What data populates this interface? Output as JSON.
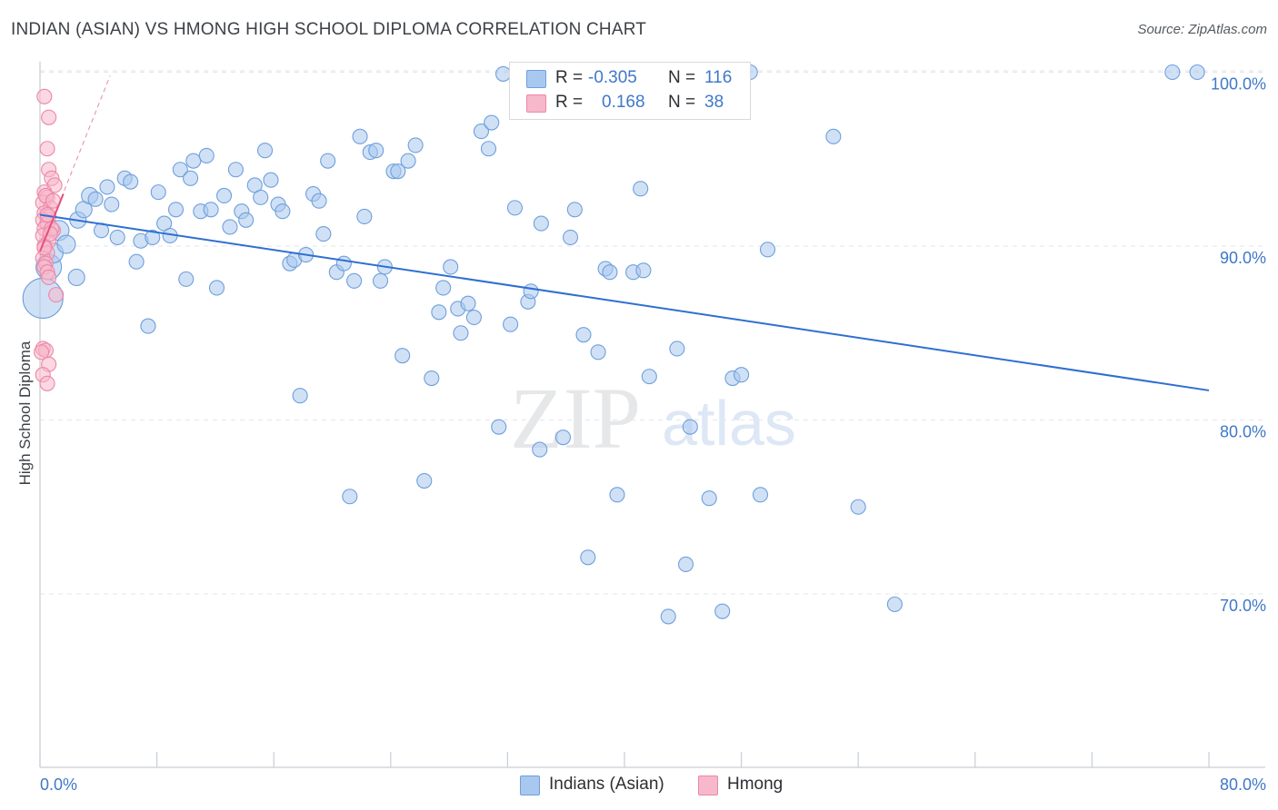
{
  "title": "INDIAN (ASIAN) VS HMONG HIGH SCHOOL DIPLOMA CORRELATION CHART",
  "source": "Source: ZipAtlas.com",
  "watermark": {
    "zip": "ZIP",
    "atlas": "atlas"
  },
  "legend": {
    "rows": [
      {
        "r_label": "R =",
        "r_value": "-0.305",
        "n_label": "N =",
        "n_value": "116"
      },
      {
        "r_label": "R =",
        "r_value": "0.168",
        "n_label": "N =",
        "n_value": "38"
      }
    ]
  },
  "bottom_legend": [
    {
      "label": "Indians (Asian)"
    },
    {
      "label": "Hmong"
    }
  ],
  "colors": {
    "blue_fill": "#a9c8ef",
    "blue_stroke": "#6f9fdc",
    "blue_line": "#2f6fd1",
    "pink_fill": "#f7b8cb",
    "pink_stroke": "#ec87a7",
    "pink_line": "#e6507e",
    "grid": "#e3e6ea",
    "axis_text": "#3f78c8"
  },
  "chart_data": {
    "type": "scatter",
    "title": "INDIAN (ASIAN) VS HMONG HIGH SCHOOL DIPLOMA CORRELATION CHART",
    "xlabel": "",
    "ylabel": "High School Diploma",
    "xlim": [
      0,
      80
    ],
    "ylim": [
      60,
      102
    ],
    "x_tick_labels": [
      "0.0%",
      "80.0%"
    ],
    "y_ticks": [
      70,
      80,
      90,
      100
    ],
    "y_tick_labels": [
      "70.0%",
      "80.0%",
      "90.0%",
      "100.0%"
    ],
    "series": [
      {
        "name": "Indians (Asian)",
        "r": -0.305,
        "n": 116,
        "trend": {
          "x": [
            0,
            80
          ],
          "y": [
            91.8,
            81.7
          ]
        },
        "points": [
          {
            "x": 0.2,
            "y": 87.0,
            "s": 22
          },
          {
            "x": 0.6,
            "y": 88.8,
            "s": 14
          },
          {
            "x": 0.9,
            "y": 89.6,
            "s": 11
          },
          {
            "x": 1.3,
            "y": 90.9,
            "s": 11
          },
          {
            "x": 1.8,
            "y": 90.1,
            "s": 10
          },
          {
            "x": 2.5,
            "y": 88.2,
            "s": 9
          },
          {
            "x": 2.6,
            "y": 91.5,
            "s": 9
          },
          {
            "x": 3.0,
            "y": 92.1,
            "s": 9
          },
          {
            "x": 3.4,
            "y": 92.9,
            "s": 9
          },
          {
            "x": 3.8,
            "y": 92.7,
            "s": 8
          },
          {
            "x": 4.2,
            "y": 90.9,
            "s": 8
          },
          {
            "x": 4.6,
            "y": 93.4,
            "s": 8
          },
          {
            "x": 4.9,
            "y": 92.4,
            "s": 8
          },
          {
            "x": 5.3,
            "y": 90.5,
            "s": 8
          },
          {
            "x": 5.8,
            "y": 93.9,
            "s": 8
          },
          {
            "x": 6.2,
            "y": 93.7,
            "s": 8
          },
          {
            "x": 6.6,
            "y": 89.1,
            "s": 8
          },
          {
            "x": 6.9,
            "y": 90.3,
            "s": 8
          },
          {
            "x": 7.4,
            "y": 85.4,
            "s": 8
          },
          {
            "x": 7.7,
            "y": 90.5,
            "s": 8
          },
          {
            "x": 8.1,
            "y": 93.1,
            "s": 8
          },
          {
            "x": 8.5,
            "y": 91.3,
            "s": 8
          },
          {
            "x": 8.9,
            "y": 90.6,
            "s": 8
          },
          {
            "x": 9.3,
            "y": 92.1,
            "s": 8
          },
          {
            "x": 9.6,
            "y": 94.4,
            "s": 8
          },
          {
            "x": 10.0,
            "y": 88.1,
            "s": 8
          },
          {
            "x": 10.3,
            "y": 93.9,
            "s": 8
          },
          {
            "x": 10.5,
            "y": 94.9,
            "s": 8
          },
          {
            "x": 11.0,
            "y": 92.0,
            "s": 8
          },
          {
            "x": 11.4,
            "y": 95.2,
            "s": 8
          },
          {
            "x": 11.7,
            "y": 92.1,
            "s": 8
          },
          {
            "x": 12.1,
            "y": 87.6,
            "s": 8
          },
          {
            "x": 12.6,
            "y": 92.9,
            "s": 8
          },
          {
            "x": 13.0,
            "y": 91.1,
            "s": 8
          },
          {
            "x": 13.4,
            "y": 94.4,
            "s": 8
          },
          {
            "x": 13.8,
            "y": 92.0,
            "s": 8
          },
          {
            "x": 14.1,
            "y": 91.5,
            "s": 8
          },
          {
            "x": 14.7,
            "y": 93.5,
            "s": 8
          },
          {
            "x": 15.1,
            "y": 92.8,
            "s": 8
          },
          {
            "x": 15.4,
            "y": 95.5,
            "s": 8
          },
          {
            "x": 15.8,
            "y": 93.8,
            "s": 8
          },
          {
            "x": 16.3,
            "y": 92.4,
            "s": 8
          },
          {
            "x": 16.6,
            "y": 92.0,
            "s": 8
          },
          {
            "x": 17.1,
            "y": 89.0,
            "s": 8
          },
          {
            "x": 17.4,
            "y": 89.2,
            "s": 8
          },
          {
            "x": 17.8,
            "y": 81.4,
            "s": 8
          },
          {
            "x": 18.2,
            "y": 89.5,
            "s": 8
          },
          {
            "x": 18.7,
            "y": 93.0,
            "s": 8
          },
          {
            "x": 19.1,
            "y": 92.6,
            "s": 8
          },
          {
            "x": 19.4,
            "y": 90.7,
            "s": 8
          },
          {
            "x": 19.7,
            "y": 94.9,
            "s": 8
          },
          {
            "x": 20.3,
            "y": 88.5,
            "s": 8
          },
          {
            "x": 20.8,
            "y": 89.0,
            "s": 8
          },
          {
            "x": 21.2,
            "y": 75.6,
            "s": 8
          },
          {
            "x": 21.5,
            "y": 88.0,
            "s": 8
          },
          {
            "x": 21.9,
            "y": 96.3,
            "s": 8
          },
          {
            "x": 22.2,
            "y": 91.7,
            "s": 8
          },
          {
            "x": 22.6,
            "y": 95.4,
            "s": 8
          },
          {
            "x": 23.0,
            "y": 95.5,
            "s": 8
          },
          {
            "x": 23.3,
            "y": 88.0,
            "s": 8
          },
          {
            "x": 23.6,
            "y": 88.8,
            "s": 8
          },
          {
            "x": 24.2,
            "y": 94.3,
            "s": 8
          },
          {
            "x": 24.5,
            "y": 94.3,
            "s": 8
          },
          {
            "x": 24.8,
            "y": 83.7,
            "s": 8
          },
          {
            "x": 25.2,
            "y": 94.9,
            "s": 8
          },
          {
            "x": 25.7,
            "y": 95.8,
            "s": 8
          },
          {
            "x": 26.3,
            "y": 76.5,
            "s": 8
          },
          {
            "x": 26.8,
            "y": 82.4,
            "s": 8
          },
          {
            "x": 27.3,
            "y": 86.2,
            "s": 8
          },
          {
            "x": 27.6,
            "y": 87.6,
            "s": 8
          },
          {
            "x": 28.1,
            "y": 88.8,
            "s": 8
          },
          {
            "x": 28.6,
            "y": 86.4,
            "s": 8
          },
          {
            "x": 28.8,
            "y": 85.0,
            "s": 8
          },
          {
            "x": 29.3,
            "y": 86.7,
            "s": 8
          },
          {
            "x": 29.7,
            "y": 85.9,
            "s": 8
          },
          {
            "x": 30.2,
            "y": 96.6,
            "s": 8
          },
          {
            "x": 30.7,
            "y": 95.6,
            "s": 8
          },
          {
            "x": 30.9,
            "y": 97.1,
            "s": 8
          },
          {
            "x": 31.4,
            "y": 79.6,
            "s": 8
          },
          {
            "x": 31.7,
            "y": 99.9,
            "s": 8
          },
          {
            "x": 32.2,
            "y": 85.5,
            "s": 8
          },
          {
            "x": 32.5,
            "y": 92.2,
            "s": 8
          },
          {
            "x": 33.4,
            "y": 86.8,
            "s": 8
          },
          {
            "x": 33.6,
            "y": 87.4,
            "s": 8
          },
          {
            "x": 34.2,
            "y": 78.3,
            "s": 8
          },
          {
            "x": 34.3,
            "y": 91.3,
            "s": 8
          },
          {
            "x": 35.8,
            "y": 79.0,
            "s": 8
          },
          {
            "x": 36.3,
            "y": 90.5,
            "s": 8
          },
          {
            "x": 36.6,
            "y": 92.1,
            "s": 8
          },
          {
            "x": 37.2,
            "y": 84.9,
            "s": 8
          },
          {
            "x": 37.5,
            "y": 72.1,
            "s": 8
          },
          {
            "x": 38.2,
            "y": 83.9,
            "s": 8
          },
          {
            "x": 38.7,
            "y": 88.7,
            "s": 8
          },
          {
            "x": 39.0,
            "y": 88.5,
            "s": 8
          },
          {
            "x": 39.5,
            "y": 75.7,
            "s": 8
          },
          {
            "x": 40.6,
            "y": 88.5,
            "s": 8
          },
          {
            "x": 41.1,
            "y": 93.3,
            "s": 8
          },
          {
            "x": 41.3,
            "y": 88.6,
            "s": 8
          },
          {
            "x": 41.7,
            "y": 82.5,
            "s": 8
          },
          {
            "x": 43.0,
            "y": 68.7,
            "s": 8
          },
          {
            "x": 43.6,
            "y": 84.1,
            "s": 8
          },
          {
            "x": 44.2,
            "y": 71.7,
            "s": 8
          },
          {
            "x": 44.5,
            "y": 79.6,
            "s": 8
          },
          {
            "x": 45.8,
            "y": 75.5,
            "s": 8
          },
          {
            "x": 46.2,
            "y": 100.0,
            "s": 8
          },
          {
            "x": 46.7,
            "y": 69.0,
            "s": 8
          },
          {
            "x": 47.4,
            "y": 82.4,
            "s": 8
          },
          {
            "x": 48.0,
            "y": 82.6,
            "s": 8
          },
          {
            "x": 48.6,
            "y": 100.0,
            "s": 8
          },
          {
            "x": 49.3,
            "y": 75.7,
            "s": 8
          },
          {
            "x": 49.8,
            "y": 89.8,
            "s": 8
          },
          {
            "x": 54.3,
            "y": 96.3,
            "s": 8
          },
          {
            "x": 56.0,
            "y": 75.0,
            "s": 8
          },
          {
            "x": 58.5,
            "y": 69.4,
            "s": 8
          },
          {
            "x": 77.5,
            "y": 100.0,
            "s": 8
          },
          {
            "x": 79.2,
            "y": 100.0,
            "s": 8
          }
        ]
      },
      {
        "name": "Hmong",
        "r": 0.168,
        "n": 38,
        "trend": {
          "x": [
            0,
            1.6
          ],
          "y": [
            89.7,
            93.0
          ]
        },
        "trend_dashed": {
          "x": [
            0,
            4.8
          ],
          "y": [
            89.7,
            99.8
          ]
        },
        "points": [
          {
            "x": 0.3,
            "y": 98.6,
            "s": 8
          },
          {
            "x": 0.6,
            "y": 97.4,
            "s": 8
          },
          {
            "x": 0.5,
            "y": 95.6,
            "s": 8
          },
          {
            "x": 0.6,
            "y": 94.4,
            "s": 8
          },
          {
            "x": 0.8,
            "y": 93.9,
            "s": 8
          },
          {
            "x": 1.0,
            "y": 93.5,
            "s": 8
          },
          {
            "x": 0.3,
            "y": 93.1,
            "s": 8
          },
          {
            "x": 0.5,
            "y": 92.8,
            "s": 8
          },
          {
            "x": 0.2,
            "y": 92.5,
            "s": 8
          },
          {
            "x": 0.7,
            "y": 92.2,
            "s": 8
          },
          {
            "x": 0.3,
            "y": 91.9,
            "s": 8
          },
          {
            "x": 0.6,
            "y": 91.7,
            "s": 8
          },
          {
            "x": 0.2,
            "y": 91.5,
            "s": 8
          },
          {
            "x": 0.5,
            "y": 91.3,
            "s": 8
          },
          {
            "x": 0.3,
            "y": 91.0,
            "s": 8
          },
          {
            "x": 0.9,
            "y": 90.9,
            "s": 8
          },
          {
            "x": 0.2,
            "y": 90.6,
            "s": 8
          },
          {
            "x": 0.6,
            "y": 90.3,
            "s": 8
          },
          {
            "x": 0.3,
            "y": 90.0,
            "s": 8
          },
          {
            "x": 0.5,
            "y": 89.6,
            "s": 8
          },
          {
            "x": 0.2,
            "y": 89.3,
            "s": 8
          },
          {
            "x": 0.4,
            "y": 89.0,
            "s": 8
          },
          {
            "x": 0.3,
            "y": 88.8,
            "s": 8
          },
          {
            "x": 0.5,
            "y": 88.5,
            "s": 8
          },
          {
            "x": 0.6,
            "y": 88.2,
            "s": 8
          },
          {
            "x": 1.1,
            "y": 87.2,
            "s": 8
          },
          {
            "x": 0.2,
            "y": 84.1,
            "s": 8
          },
          {
            "x": 0.4,
            "y": 84.0,
            "s": 8
          },
          {
            "x": 0.1,
            "y": 83.9,
            "s": 8
          },
          {
            "x": 0.6,
            "y": 83.2,
            "s": 8
          },
          {
            "x": 0.2,
            "y": 82.6,
            "s": 8
          },
          {
            "x": 0.5,
            "y": 82.1,
            "s": 8
          },
          {
            "x": 0.8,
            "y": 91.0,
            "s": 8
          },
          {
            "x": 0.4,
            "y": 92.9,
            "s": 8
          },
          {
            "x": 0.7,
            "y": 90.7,
            "s": 8
          },
          {
            "x": 0.3,
            "y": 89.9,
            "s": 8
          },
          {
            "x": 0.5,
            "y": 91.8,
            "s": 8
          },
          {
            "x": 0.9,
            "y": 92.6,
            "s": 8
          }
        ]
      }
    ]
  }
}
